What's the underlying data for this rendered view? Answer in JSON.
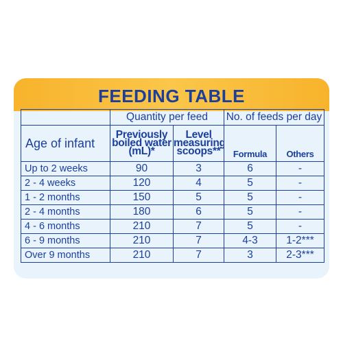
{
  "title": "FEEDING TABLE",
  "group_headers": {
    "quantity": "Quantity per feed",
    "feeds": "No. of feeds per day"
  },
  "column_headers": {
    "age": "Age of infant",
    "water": "Previously boiled water (mL)*",
    "scoops": "Level measuring scoops**",
    "formula": "Formula",
    "others": "Others"
  },
  "rows": [
    {
      "age": "Up to 2 weeks",
      "water": "90",
      "scoops": "3",
      "formula": "6",
      "others": "-"
    },
    {
      "age": "2 - 4 weeks",
      "water": "120",
      "scoops": "4",
      "formula": "5",
      "others": "-"
    },
    {
      "age": "1 - 2 months",
      "water": "150",
      "scoops": "5",
      "formula": "5",
      "others": "-"
    },
    {
      "age": "2 - 4 months",
      "water": "180",
      "scoops": "6",
      "formula": "5",
      "others": "-"
    },
    {
      "age": "4 - 6 months",
      "water": "210",
      "scoops": "7",
      "formula": "5",
      "others": "-"
    },
    {
      "age": "6 - 9 months",
      "water": "210",
      "scoops": "7",
      "formula": "4-3",
      "others": "1-2***"
    },
    {
      "age": "Over 9 months",
      "water": "210",
      "scoops": "7",
      "formula": "3",
      "others": "2-3***"
    }
  ],
  "colors": {
    "text": "#1c3f9c",
    "banner": "#f7b32b",
    "panel": "#e8f3fc"
  }
}
